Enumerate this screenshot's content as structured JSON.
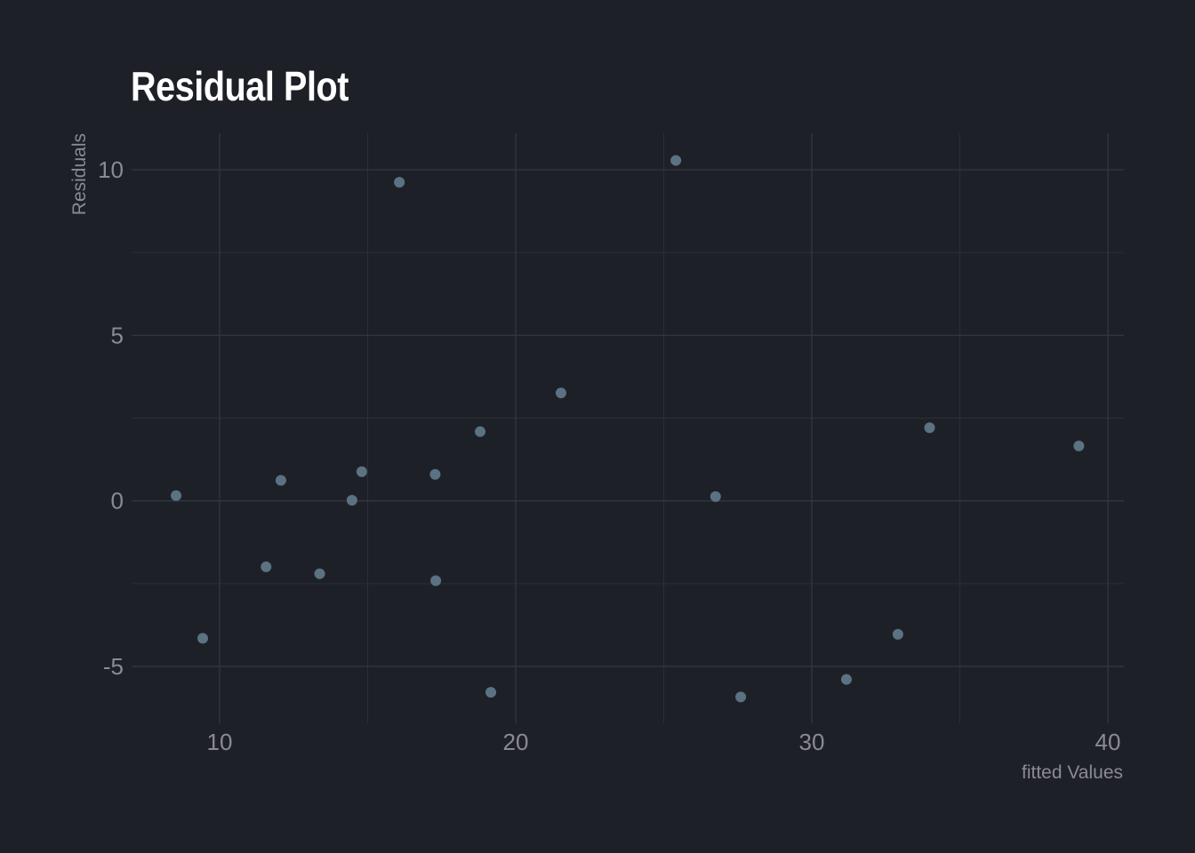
{
  "chart_data": {
    "type": "scatter",
    "title": "Residual Plot",
    "xlabel": "fitted Values",
    "ylabel": "Residuals",
    "xlim": [
      7.0,
      40.5
    ],
    "ylim": [
      -6.5,
      11.1
    ],
    "x_ticks": [
      10,
      20,
      30,
      40
    ],
    "x_tick_labels": [
      "10",
      "20",
      "30",
      "40"
    ],
    "x_minor_ticks": [
      15,
      25,
      35
    ],
    "y_ticks": [
      10,
      5,
      0,
      -5
    ],
    "y_tick_labels": [
      "10",
      "5",
      "0",
      "-5"
    ],
    "y_minor_ticks": [
      7.5,
      2.5,
      -2.5
    ],
    "grid": true,
    "legend": null,
    "point_color": "#5b7282",
    "background_color": "#1e2028",
    "points": [
      {
        "x": 8.53,
        "y": 0.16
      },
      {
        "x": 9.43,
        "y": -4.15
      },
      {
        "x": 11.57,
        "y": -1.99
      },
      {
        "x": 12.07,
        "y": 0.62
      },
      {
        "x": 13.38,
        "y": -2.2
      },
      {
        "x": 14.47,
        "y": 0.02
      },
      {
        "x": 14.8,
        "y": 0.88
      },
      {
        "x": 16.07,
        "y": 9.62
      },
      {
        "x": 17.28,
        "y": 0.8
      },
      {
        "x": 17.3,
        "y": -2.41
      },
      {
        "x": 18.8,
        "y": 2.09
      },
      {
        "x": 19.16,
        "y": -5.78
      },
      {
        "x": 21.53,
        "y": 3.26
      },
      {
        "x": 25.41,
        "y": 10.28
      },
      {
        "x": 26.75,
        "y": 0.13
      },
      {
        "x": 27.6,
        "y": -5.92
      },
      {
        "x": 31.17,
        "y": -5.39
      },
      {
        "x": 32.91,
        "y": -4.03
      },
      {
        "x": 33.98,
        "y": 2.21
      },
      {
        "x": 39.02,
        "y": 1.66
      }
    ]
  }
}
